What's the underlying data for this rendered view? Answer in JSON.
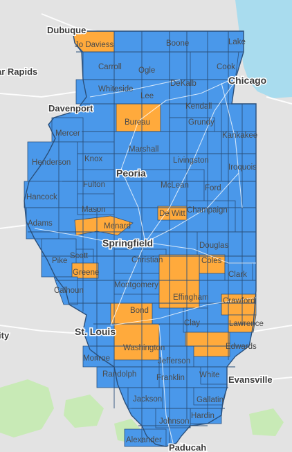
{
  "colors": {
    "background": "#e3e3e3",
    "water": "#a9dcee",
    "park": "#c8eab6",
    "county_blue": "#4a98ea",
    "county_orange": "#ffaa3c",
    "county_border": "#2a4f7a",
    "road": "#ffffff"
  },
  "counties": [
    {
      "name": "Jo Daviess",
      "color": "orange"
    },
    {
      "name": "Boone",
      "color": "blue"
    },
    {
      "name": "Lake",
      "color": "blue"
    },
    {
      "name": "Carroll",
      "color": "blue"
    },
    {
      "name": "Ogle",
      "color": "blue"
    },
    {
      "name": "DeKalb",
      "color": "blue"
    },
    {
      "name": "Cook",
      "color": "blue"
    },
    {
      "name": "Whiteside",
      "color": "blue"
    },
    {
      "name": "Lee",
      "color": "blue"
    },
    {
      "name": "Kendall",
      "color": "blue"
    },
    {
      "name": "Bureau",
      "color": "orange"
    },
    {
      "name": "Grundy",
      "color": "blue"
    },
    {
      "name": "Mercer",
      "color": "blue"
    },
    {
      "name": "Kankakee",
      "color": "blue"
    },
    {
      "name": "Marshall",
      "color": "blue"
    },
    {
      "name": "Henderson",
      "color": "blue"
    },
    {
      "name": "Knox",
      "color": "blue"
    },
    {
      "name": "Livingston",
      "color": "blue"
    },
    {
      "name": "Iroquois",
      "color": "blue"
    },
    {
      "name": "Fulton",
      "color": "blue"
    },
    {
      "name": "McLean",
      "color": "blue"
    },
    {
      "name": "Ford",
      "color": "blue"
    },
    {
      "name": "Hancock",
      "color": "blue"
    },
    {
      "name": "Mason",
      "color": "blue"
    },
    {
      "name": "De Witt",
      "color": "orange"
    },
    {
      "name": "Champaign",
      "color": "blue"
    },
    {
      "name": "Adams",
      "color": "blue"
    },
    {
      "name": "Menard",
      "color": "orange"
    },
    {
      "name": "Scott",
      "color": "blue"
    },
    {
      "name": "Douglas",
      "color": "blue"
    },
    {
      "name": "Pike",
      "color": "blue"
    },
    {
      "name": "Christian",
      "color": "blue"
    },
    {
      "name": "Coles",
      "color": "orange"
    },
    {
      "name": "Greene",
      "color": "orange"
    },
    {
      "name": "Clark",
      "color": "blue"
    },
    {
      "name": "Montgomery",
      "color": "blue"
    },
    {
      "name": "Calhoun",
      "color": "blue"
    },
    {
      "name": "Effingham",
      "color": "orange"
    },
    {
      "name": "Crawford",
      "color": "orange"
    },
    {
      "name": "Bond",
      "color": "orange"
    },
    {
      "name": "Clay",
      "color": "blue"
    },
    {
      "name": "Lawrence",
      "color": "orange"
    },
    {
      "name": "Washington",
      "color": "orange"
    },
    {
      "name": "Edwards",
      "color": "orange"
    },
    {
      "name": "Monroe",
      "color": "blue"
    },
    {
      "name": "Jefferson",
      "color": "blue"
    },
    {
      "name": "Randolph",
      "color": "blue"
    },
    {
      "name": "Franklin",
      "color": "blue"
    },
    {
      "name": "White",
      "color": "blue"
    },
    {
      "name": "Jackson",
      "color": "blue"
    },
    {
      "name": "Gallatin",
      "color": "blue"
    },
    {
      "name": "Hardin",
      "color": "blue"
    },
    {
      "name": "Johnson",
      "color": "blue"
    },
    {
      "name": "Alexander",
      "color": "blue"
    }
  ],
  "cities": [
    {
      "name": "Dubuque"
    },
    {
      "name": "ar Rapids"
    },
    {
      "name": "Chicago"
    },
    {
      "name": "Davenport"
    },
    {
      "name": "Peoria"
    },
    {
      "name": "Springfield"
    },
    {
      "name": "St. Louis"
    },
    {
      "name": "ity"
    },
    {
      "name": "Evansville"
    },
    {
      "name": "Paducah"
    }
  ]
}
